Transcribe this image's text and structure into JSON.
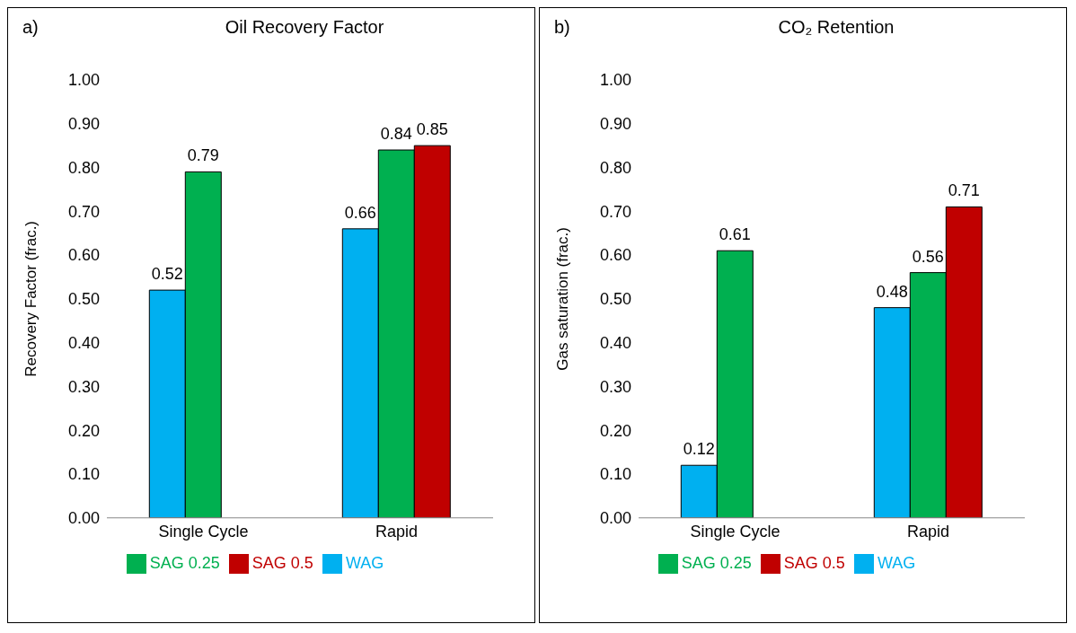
{
  "chart_data": [
    {
      "type": "bar",
      "title": "Oil Recovery Factor",
      "ylabel": "Recovery Factor (frac.)",
      "annotations": [
        "a)"
      ],
      "categories": [
        "Single Cycle",
        "Rapid"
      ],
      "series": [
        {
          "name": "WAG",
          "color": "#00b0f0",
          "values": [
            0.52,
            0.66
          ]
        },
        {
          "name": "SAG 0.25",
          "color": "#00b050",
          "values": [
            0.79,
            0.84
          ]
        },
        {
          "name": "SAG 0.5",
          "color": "#c00000",
          "values": [
            null,
            0.85
          ]
        }
      ],
      "ylim": [
        0,
        1
      ],
      "yticks": [
        {
          "value": 0,
          "label": "0.00"
        },
        {
          "value": 0.1,
          "label": "0.10"
        },
        {
          "value": 0.2,
          "label": "0.20"
        },
        {
          "value": 0.3,
          "label": "0.30"
        },
        {
          "value": 0.4,
          "label": "0.40"
        },
        {
          "value": 0.5,
          "label": "0.50"
        },
        {
          "value": 0.6,
          "label": "0.60"
        },
        {
          "value": 0.7,
          "label": "0.70"
        },
        {
          "value": 0.8,
          "label": "0.80"
        },
        {
          "value": 0.9,
          "label": "0.90"
        },
        {
          "value": 1,
          "label": "1.00"
        }
      ],
      "data_labels": true,
      "grid": false,
      "legend": "bottom"
    },
    {
      "type": "bar",
      "title": "CO₂ Retention",
      "ylabel": "Gas saturation (frac.)",
      "annotations": [
        "b)"
      ],
      "categories": [
        "Single Cycle",
        "Rapid"
      ],
      "series": [
        {
          "name": "WAG",
          "color": "#00b0f0",
          "values": [
            0.12,
            0.48
          ]
        },
        {
          "name": "SAG 0.25",
          "color": "#00b050",
          "values": [
            0.61,
            0.56
          ]
        },
        {
          "name": "SAG 0.5",
          "color": "#c00000",
          "values": [
            null,
            0.71
          ]
        }
      ],
      "ylim": [
        0,
        1
      ],
      "yticks": [
        {
          "value": 0,
          "label": "0.00"
        },
        {
          "value": 0.1,
          "label": "0.10"
        },
        {
          "value": 0.2,
          "label": "0.20"
        },
        {
          "value": 0.3,
          "label": "0.30"
        },
        {
          "value": 0.4,
          "label": "0.40"
        },
        {
          "value": 0.5,
          "label": "0.50"
        },
        {
          "value": 0.6,
          "label": "0.60"
        },
        {
          "value": 0.7,
          "label": "0.70"
        },
        {
          "value": 0.8,
          "label": "0.80"
        },
        {
          "value": 0.9,
          "label": "0.90"
        },
        {
          "value": 1,
          "label": "1.00"
        }
      ],
      "data_labels": true,
      "grid": false,
      "legend": "bottom"
    }
  ]
}
